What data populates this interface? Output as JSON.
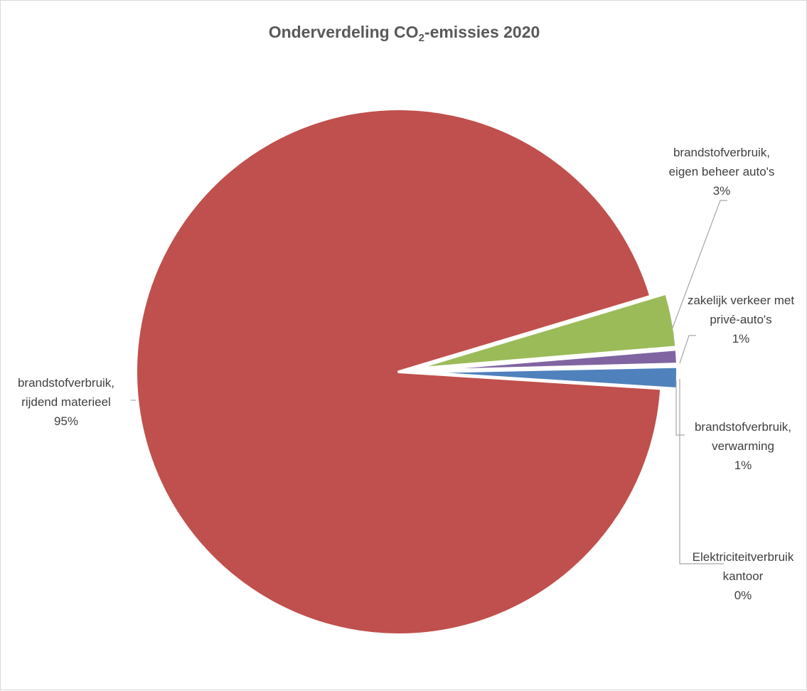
{
  "chart_data": {
    "type": "pie",
    "title": {
      "prefix": "Onderverdeling CO",
      "subscript": "2",
      "suffix": "-emissies 2020"
    },
    "slices": [
      {
        "name": "Elektriciteitverbruik kantoor",
        "label_lines": [
          "Elektriciteitverbruik",
          "kantoor"
        ],
        "value": 0.08,
        "percent_label": "0%",
        "color": "#4f81bd"
      },
      {
        "name": "brandstofverbruik, verwarming",
        "label_lines": [
          "brandstofverbruik,",
          "verwarming"
        ],
        "value": 1.35,
        "percent_label": "1%",
        "color": "#4f81bd"
      },
      {
        "name": "brandstofverbruik, rijdend materieel",
        "label_lines": [
          "brandstofverbruik,",
          "rijdend materieel"
        ],
        "value": 94.35,
        "percent_label": "95%",
        "color": "#c0504d"
      },
      {
        "name": "brandstofverbruik, eigen beheer auto's",
        "label_lines": [
          "brandstofverbruik,",
          "eigen beheer auto's"
        ],
        "value": 3.32,
        "percent_label": "3%",
        "color": "#9bbb59"
      },
      {
        "name": "zakelijk verkeer met privé-auto's",
        "label_lines": [
          "zakelijk verkeer met",
          "privé-auto's"
        ],
        "value": 0.9,
        "percent_label": "1%",
        "color": "#8064a2"
      }
    ],
    "legend": "none",
    "data_labels": "outside with leader lines"
  }
}
